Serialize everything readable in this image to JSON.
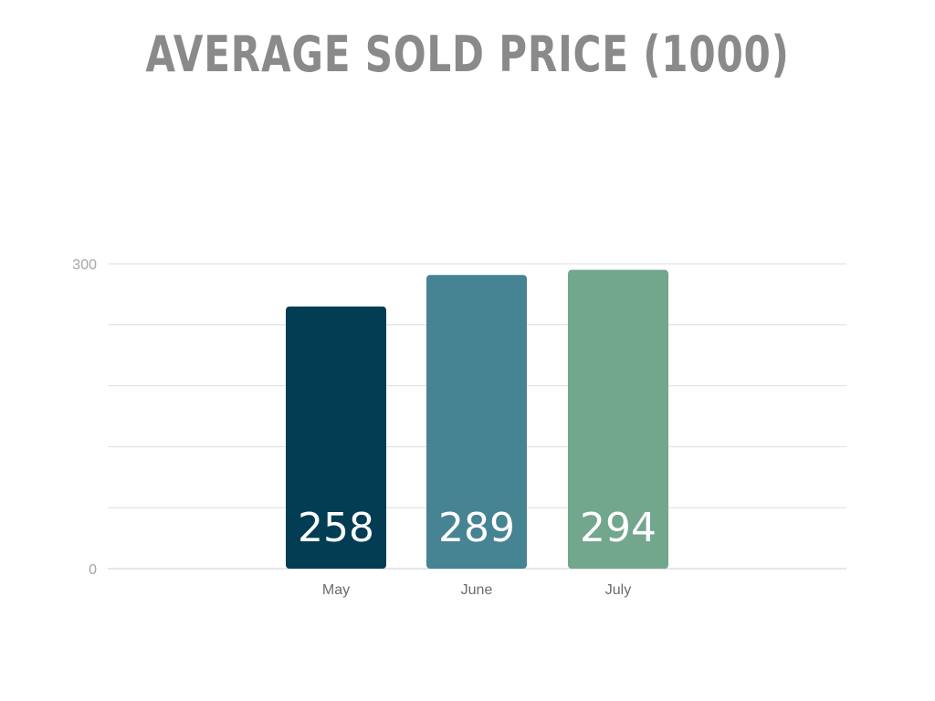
{
  "title": "AVERAGE SOLD PRICE (1000)",
  "chart_data": {
    "type": "bar",
    "title": "AVERAGE SOLD PRICE (1000)",
    "categories": [
      "May",
      "June",
      "July"
    ],
    "values": [
      258,
      289,
      294
    ],
    "colors": [
      "#023d54",
      "#468393",
      "#72a68d"
    ],
    "xlabel": "",
    "ylabel": "",
    "ylim": [
      0,
      300
    ],
    "yticks": [
      0,
      300
    ],
    "gridline_count": 6,
    "grid": true,
    "legend": "none",
    "data_labels": "inside-bottom"
  }
}
